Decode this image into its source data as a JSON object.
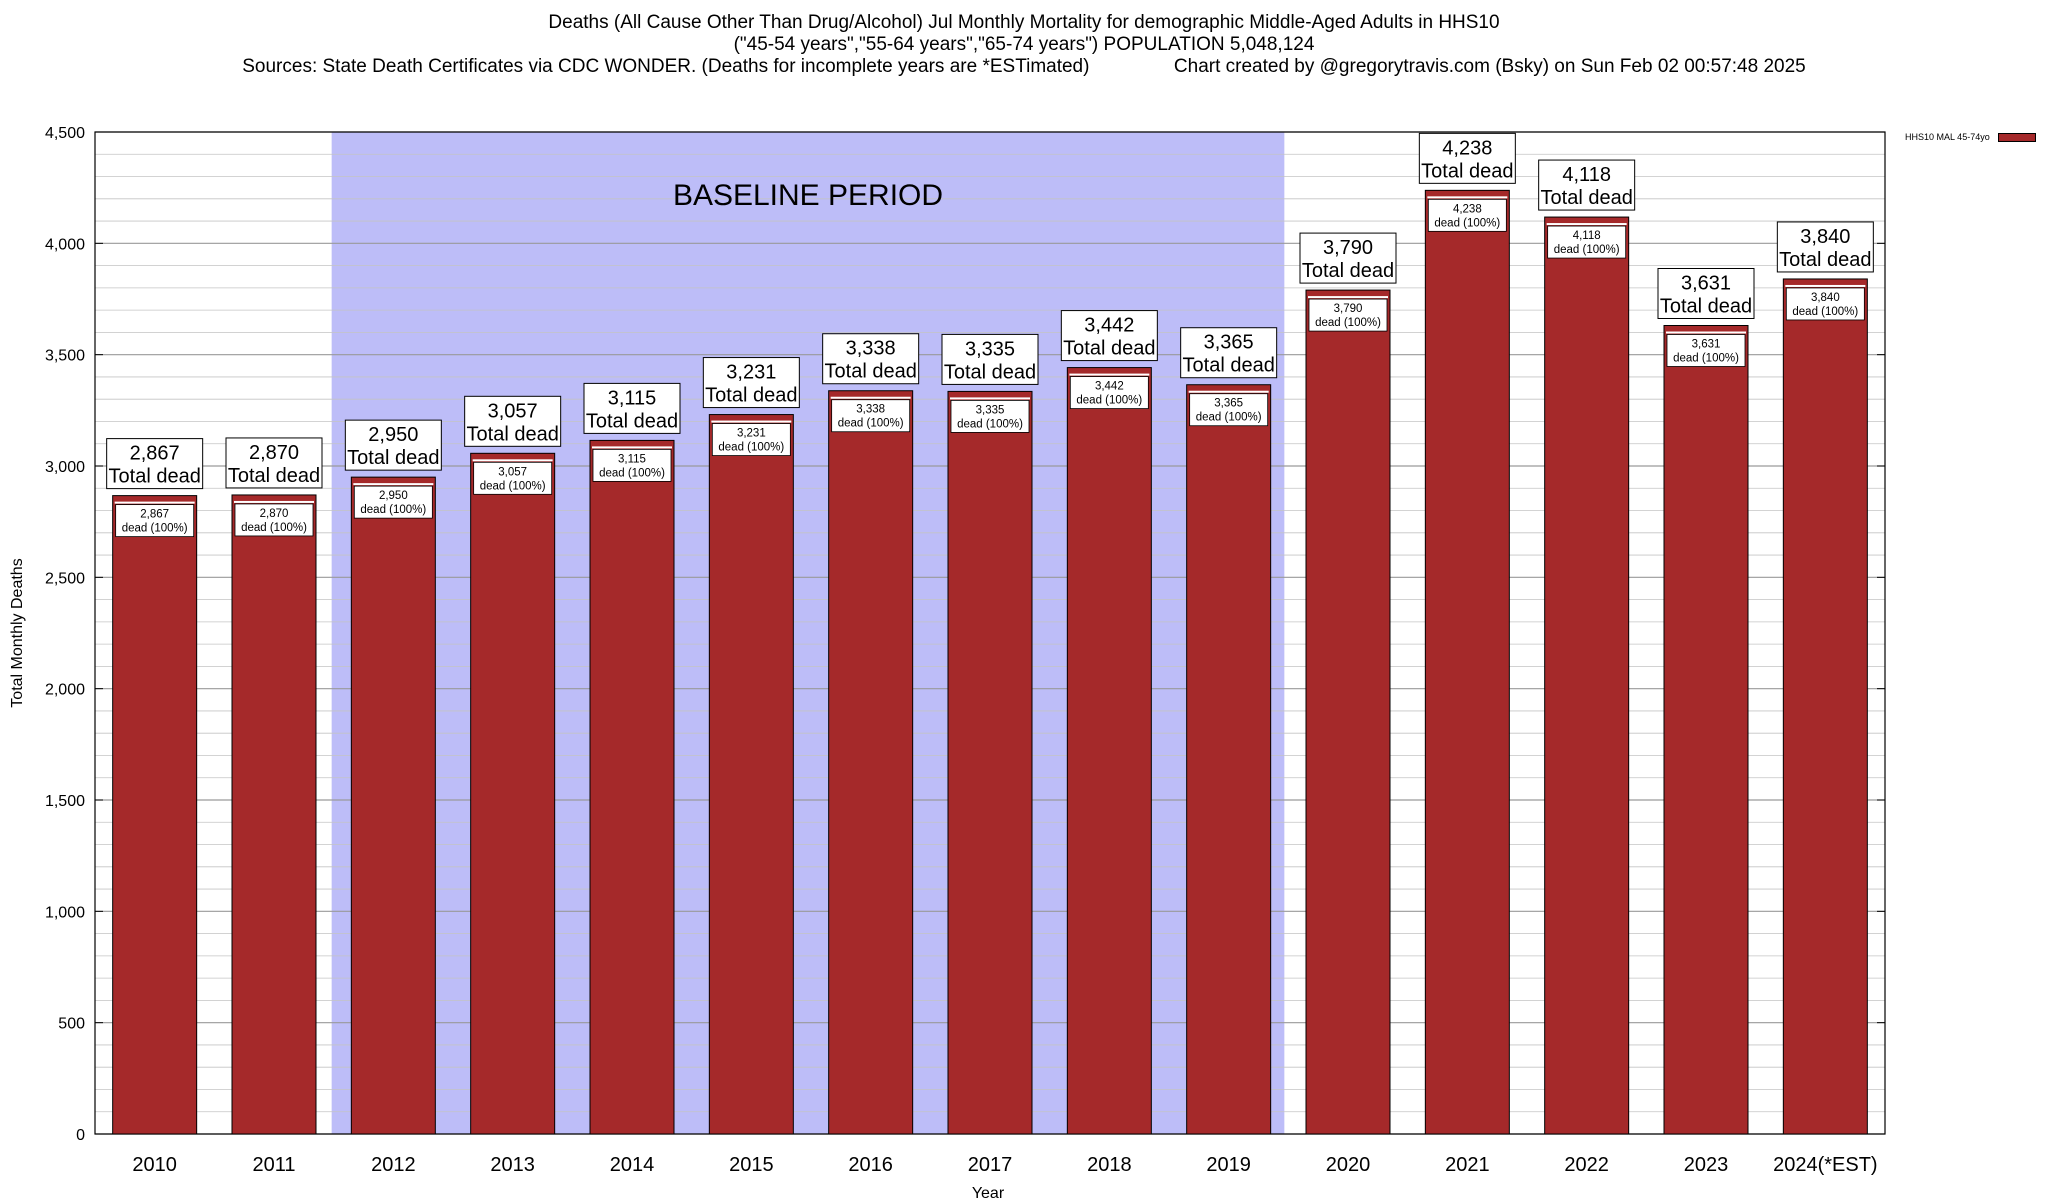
{
  "chart_data": {
    "type": "bar",
    "title_lines": [
      "Deaths (All Cause Other Than Drug/Alcohol) Jul Monthly Mortality for demographic Middle-Aged Adults in HHS10",
      "(\"45-54 years\",\"55-64 years\",\"65-74 years\") POPULATION 5,048,124",
      "Sources: State Death Certificates via CDC WONDER. (Deaths for incomplete years are *ESTimated)                Chart created by @gregorytravis.com (Bsky) on Sun Feb 02 00:57:48 2025"
    ],
    "xlabel": "Year",
    "ylabel": "Total Monthly Deaths",
    "ylim": [
      0,
      4500
    ],
    "y_major_ticks": [
      0,
      500,
      1000,
      1500,
      2000,
      2500,
      3000,
      3500,
      4000,
      4500
    ],
    "y_major_tick_labels": [
      "0",
      "500",
      "1,000",
      "1,500",
      "2,000",
      "2,500",
      "3,000",
      "3,500",
      "4,000",
      "4,500"
    ],
    "y_minor_step": 100,
    "grid": true,
    "categories": [
      "2010",
      "2011",
      "2012",
      "2013",
      "2014",
      "2015",
      "2016",
      "2017",
      "2018",
      "2019",
      "2020",
      "2021",
      "2022",
      "2023",
      "2024(*EST)"
    ],
    "series": [
      {
        "name": "HHS10 MAL 45-74yo",
        "color": "#a5292a",
        "values": [
          2867,
          2870,
          2950,
          3057,
          3115,
          3231,
          3338,
          3335,
          3442,
          3365,
          3790,
          4238,
          4118,
          3631,
          3840
        ]
      }
    ],
    "value_labels": [
      "2,867",
      "2,870",
      "2,950",
      "3,057",
      "3,115",
      "3,231",
      "3,338",
      "3,335",
      "3,442",
      "3,365",
      "3,790",
      "4,238",
      "4,118",
      "3,631",
      "3,840"
    ],
    "total_label_suffix": "Total dead",
    "inner_label_suffix": "dead (100%)",
    "baseline_region": {
      "label": "BASELINE PERIOD",
      "from": "2012",
      "to": "2019",
      "color": "#bdbdf8"
    },
    "legend_position": "top-right"
  }
}
